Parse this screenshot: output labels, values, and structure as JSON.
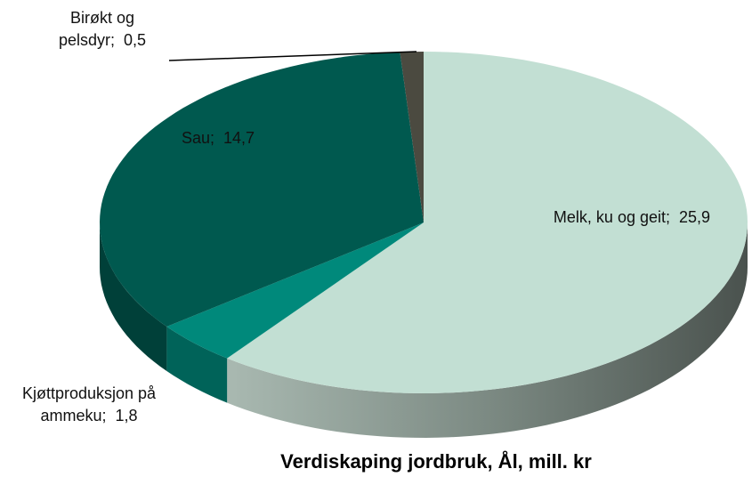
{
  "chart_data": {
    "type": "pie",
    "title": "Verdiskaping jordbruk, Ål, mill. kr",
    "categories": [
      "Melk, ku og geit",
      "Kjøttproduksjon på ammeku",
      "Sau",
      "Birøkt og pelsdyr"
    ],
    "values": [
      25.9,
      1.8,
      14.7,
      0.5
    ],
    "value_labels": [
      "25,9",
      "1,8",
      "14,7",
      "0,5"
    ],
    "label_separator": ";",
    "colors": [
      "#c2dfd3",
      "#00897b",
      "#00594f",
      "#4b4a40"
    ]
  }
}
